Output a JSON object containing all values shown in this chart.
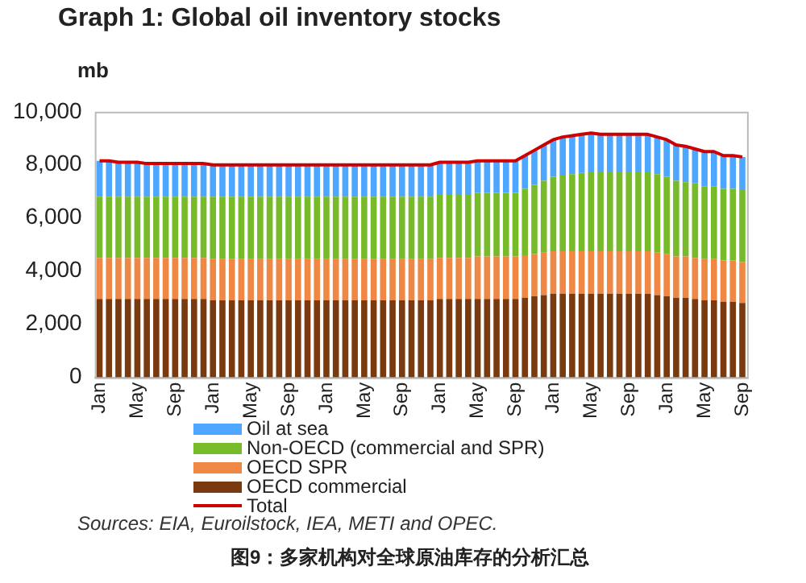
{
  "chart_data": {
    "type": "bar",
    "stacked": true,
    "title": "Graph 1: Global oil inventory stocks",
    "ylabel": "mb",
    "categories": [
      "Jan",
      null,
      null,
      null,
      "May",
      null,
      null,
      null,
      "Sep",
      null,
      null,
      null,
      "Jan",
      null,
      null,
      null,
      "May",
      null,
      null,
      null,
      "Sep",
      null,
      null,
      null,
      "Jan",
      null,
      null,
      null,
      "May",
      null,
      null,
      null,
      "Sep",
      null,
      null,
      null,
      "Jan",
      null,
      null,
      null,
      "May",
      null,
      null,
      null,
      "Sep",
      null,
      null,
      null,
      "Jan",
      null,
      null,
      null,
      "May",
      null,
      null,
      null,
      "Sep",
      null,
      null,
      null,
      "Jan",
      null,
      null,
      null,
      "May",
      null,
      null,
      null,
      "Sep"
    ],
    "series": [
      {
        "name": "OECD commercial",
        "color": "#7a3a10",
        "values": [
          2950,
          2950,
          2950,
          2950,
          2950,
          2950,
          2950,
          2950,
          2950,
          2950,
          2950,
          2950,
          2900,
          2900,
          2900,
          2900,
          2900,
          2900,
          2900,
          2900,
          2900,
          2900,
          2900,
          2900,
          2900,
          2900,
          2900,
          2900,
          2900,
          2900,
          2900,
          2900,
          2900,
          2900,
          2900,
          2900,
          2950,
          2950,
          2950,
          2950,
          2950,
          2950,
          2950,
          2950,
          2950,
          3000,
          3050,
          3100,
          3150,
          3150,
          3150,
          3150,
          3150,
          3150,
          3150,
          3150,
          3150,
          3150,
          3150,
          3100,
          3050,
          3000,
          3000,
          2950,
          2900,
          2900,
          2850,
          2850,
          2800
        ]
      },
      {
        "name": "OECD SPR",
        "color": "#ee8844",
        "values": [
          1550,
          1550,
          1550,
          1550,
          1550,
          1550,
          1550,
          1550,
          1550,
          1550,
          1550,
          1550,
          1550,
          1550,
          1550,
          1550,
          1550,
          1550,
          1550,
          1550,
          1550,
          1550,
          1550,
          1550,
          1550,
          1550,
          1550,
          1550,
          1550,
          1550,
          1550,
          1550,
          1550,
          1550,
          1550,
          1550,
          1550,
          1550,
          1550,
          1550,
          1600,
          1600,
          1600,
          1600,
          1600,
          1600,
          1600,
          1600,
          1600,
          1600,
          1600,
          1600,
          1600,
          1600,
          1600,
          1600,
          1600,
          1600,
          1600,
          1600,
          1600,
          1550,
          1550,
          1550,
          1550,
          1550,
          1550,
          1550,
          1550
        ]
      },
      {
        "name": "Non-OECD (commercial and SPR)",
        "color": "#77bb2a",
        "values": [
          2300,
          2300,
          2300,
          2300,
          2300,
          2300,
          2300,
          2300,
          2300,
          2300,
          2300,
          2300,
          2350,
          2350,
          2350,
          2350,
          2350,
          2350,
          2350,
          2350,
          2350,
          2350,
          2350,
          2350,
          2350,
          2350,
          2350,
          2350,
          2350,
          2350,
          2350,
          2350,
          2350,
          2350,
          2350,
          2350,
          2400,
          2400,
          2400,
          2400,
          2400,
          2400,
          2400,
          2400,
          2400,
          2500,
          2600,
          2700,
          2800,
          2850,
          2900,
          2950,
          3000,
          3000,
          3000,
          3000,
          3000,
          3000,
          3000,
          2950,
          2900,
          2850,
          2800,
          2800,
          2750,
          2750,
          2700,
          2700,
          2700
        ]
      },
      {
        "name": "Oil at sea",
        "color": "#4da6ff",
        "values": [
          1350,
          1350,
          1300,
          1300,
          1300,
          1250,
          1250,
          1250,
          1250,
          1250,
          1250,
          1250,
          1200,
          1200,
          1200,
          1200,
          1200,
          1200,
          1200,
          1200,
          1200,
          1200,
          1200,
          1200,
          1200,
          1200,
          1200,
          1200,
          1200,
          1200,
          1200,
          1200,
          1200,
          1200,
          1200,
          1200,
          1200,
          1200,
          1200,
          1200,
          1200,
          1200,
          1200,
          1200,
          1200,
          1250,
          1300,
          1350,
          1400,
          1450,
          1450,
          1450,
          1450,
          1400,
          1400,
          1400,
          1400,
          1400,
          1400,
          1400,
          1400,
          1350,
          1350,
          1300,
          1300,
          1300,
          1250,
          1250,
          1250
        ]
      },
      {
        "name": "Total",
        "type": "line",
        "color": "#cc0000",
        "values": [
          8150,
          8150,
          8100,
          8100,
          8100,
          8050,
          8050,
          8050,
          8050,
          8050,
          8050,
          8050,
          8000,
          8000,
          8000,
          8000,
          8000,
          8000,
          8000,
          8000,
          8000,
          8000,
          8000,
          8000,
          8000,
          8000,
          8000,
          8000,
          8000,
          8000,
          8000,
          8000,
          8000,
          8000,
          8000,
          8000,
          8100,
          8100,
          8100,
          8100,
          8150,
          8150,
          8150,
          8150,
          8150,
          8350,
          8550,
          8750,
          8950,
          9050,
          9100,
          9150,
          9200,
          9150,
          9150,
          9150,
          9150,
          9150,
          9150,
          9050,
          8950,
          8750,
          8700,
          8600,
          8500,
          8500,
          8350,
          8350,
          8300
        ]
      }
    ],
    "ylim": [
      0,
      10000
    ],
    "yticks": [
      0,
      {
        "value": 2000,
        "label": "2,000"
      },
      {
        "value": 4000,
        "label": "4,000"
      },
      {
        "value": 6000,
        "label": "6,000"
      },
      {
        "value": 8000,
        "label": "8,000"
      },
      {
        "value": 10000,
        "label": "10,000"
      }
    ],
    "grid": false,
    "legend": "bottom",
    "marker": "none",
    "annotations": [
      "Sources: EIA, Euroilstock, IEA, METI and OPEC.",
      "图9：多家机构对全球原油库存的分析汇总"
    ]
  }
}
